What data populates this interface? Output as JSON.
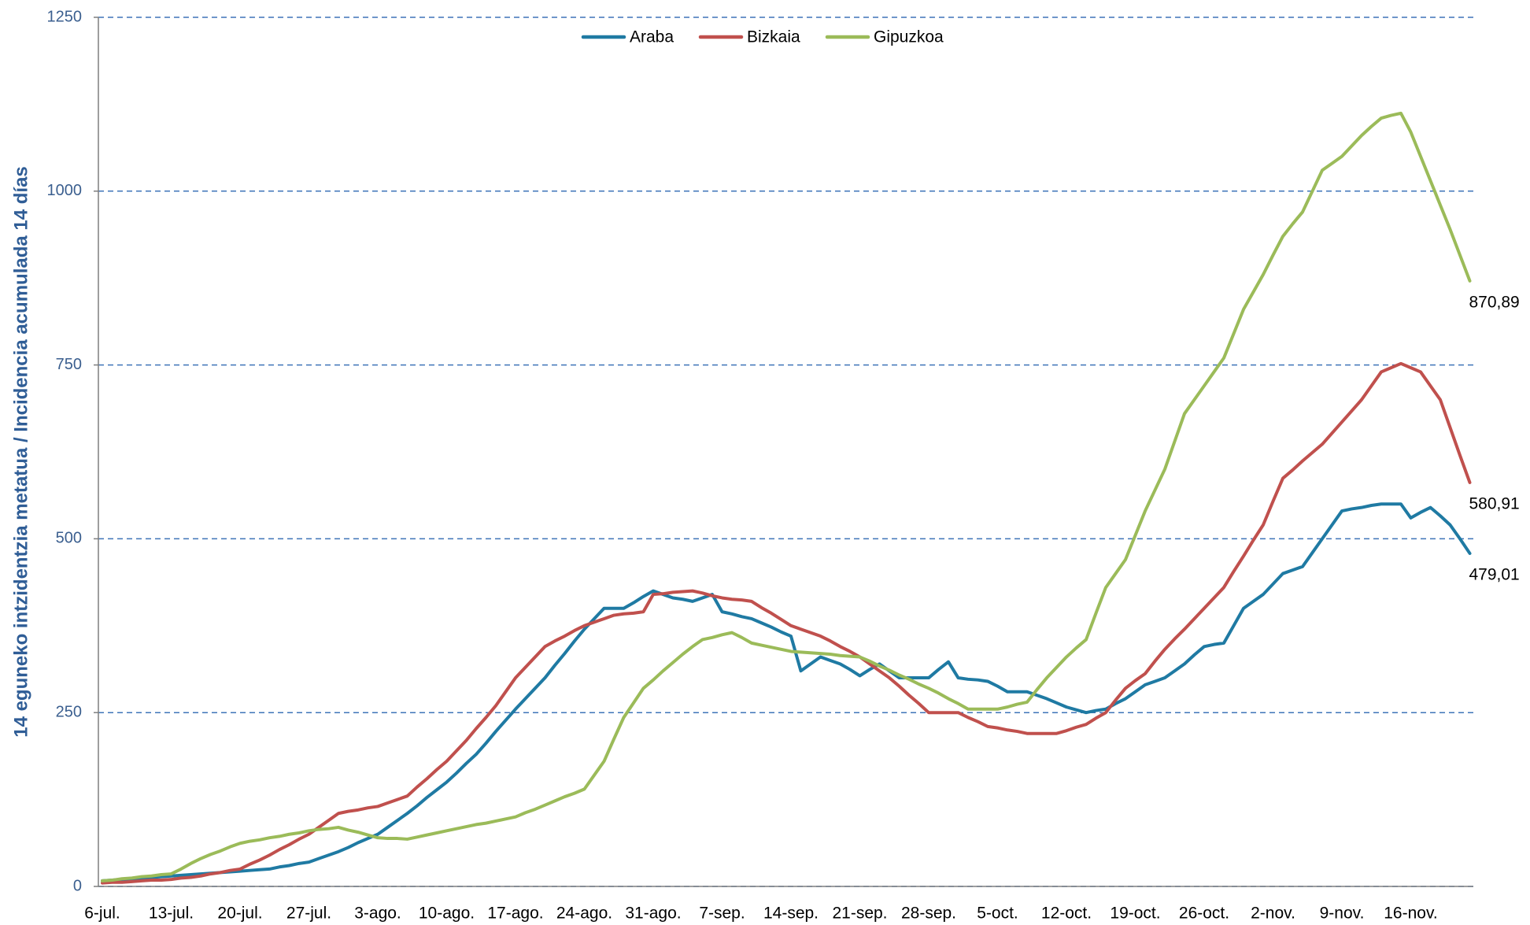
{
  "chart_data": {
    "type": "line",
    "y_axis_label": "14 eguneko intzidentzia metatua / Incidencia acumulada 14 días",
    "categories": [
      "6-jul.",
      null,
      null,
      null,
      null,
      null,
      null,
      "13-jul.",
      null,
      null,
      null,
      null,
      null,
      null,
      "20-jul.",
      null,
      null,
      null,
      null,
      null,
      null,
      "27-jul.",
      null,
      null,
      null,
      null,
      null,
      null,
      "3-ago.",
      null,
      null,
      null,
      null,
      null,
      null,
      "10-ago.",
      null,
      null,
      null,
      null,
      null,
      null,
      "17-ago.",
      null,
      null,
      null,
      null,
      null,
      null,
      "24-ago.",
      null,
      null,
      null,
      null,
      null,
      null,
      "31-ago.",
      null,
      null,
      null,
      null,
      null,
      null,
      "7-sep.",
      null,
      null,
      null,
      null,
      null,
      null,
      "14-sep.",
      null,
      null,
      null,
      null,
      null,
      null,
      "21-sep.",
      null,
      null,
      null,
      null,
      null,
      null,
      "28-sep.",
      null,
      null,
      null,
      null,
      null,
      null,
      "5-oct.",
      null,
      null,
      null,
      null,
      null,
      null,
      "12-oct.",
      null,
      null,
      null,
      null,
      null,
      null,
      "19-oct.",
      null,
      null,
      null,
      null,
      null,
      null,
      "26-oct.",
      null,
      null,
      null,
      null,
      null,
      null,
      "2-nov.",
      null,
      null,
      null,
      null,
      null,
      null,
      "9-nov.",
      null,
      null,
      null,
      null,
      null,
      null,
      "16-nov.",
      null,
      null,
      null,
      null,
      null,
      null
    ],
    "series": [
      {
        "name": "Araba",
        "color": "#1f7aa3",
        "values": [
          8,
          9,
          10,
          11,
          12,
          13,
          14,
          15,
          16,
          17,
          18,
          19,
          20,
          21,
          22,
          23,
          24,
          25,
          28,
          30,
          33,
          35,
          40,
          45,
          50,
          56,
          63,
          69,
          75,
          85,
          95,
          105,
          116,
          128,
          139,
          150,
          163,
          177,
          190,
          206,
          223,
          239,
          255,
          270,
          285,
          300,
          318,
          335,
          353,
          370,
          385,
          400,
          400,
          400,
          408,
          417,
          425,
          420,
          415,
          413,
          410,
          415,
          420,
          395,
          392,
          388,
          385,
          379,
          373,
          366,
          360,
          310,
          320,
          330,
          325,
          320,
          312,
          303,
          312,
          320,
          310,
          300,
          300,
          300,
          300,
          312,
          323,
          300,
          298,
          297,
          295,
          288,
          280,
          280,
          280,
          275,
          270,
          264,
          258,
          254,
          250,
          253,
          255,
          263,
          270,
          280,
          290,
          295,
          300,
          310,
          320,
          333,
          345,
          348,
          350,
          375,
          400,
          410,
          420,
          435,
          450,
          455,
          460,
          480,
          500,
          520,
          540,
          543,
          545,
          548,
          550,
          550,
          550,
          530,
          538,
          545,
          533,
          520,
          500,
          479.01
        ],
        "value_labels": [
          null,
          null,
          null,
          null,
          null,
          null,
          null,
          null,
          null,
          null,
          null,
          null,
          null,
          null,
          null,
          null,
          null,
          null,
          null,
          null,
          null,
          null,
          null,
          null,
          null,
          null,
          null,
          null,
          null,
          null,
          null,
          null,
          null,
          null,
          null,
          null,
          null,
          null,
          null,
          null,
          null,
          null,
          null,
          null,
          null,
          null,
          null,
          null,
          null,
          null,
          null,
          null,
          null,
          null,
          null,
          null,
          null,
          null,
          null,
          null,
          null,
          null,
          null,
          null,
          null,
          null,
          null,
          null,
          null,
          null,
          null,
          null,
          null,
          null,
          null,
          null,
          null,
          null,
          null,
          null,
          null,
          null,
          null,
          null,
          null,
          null,
          null,
          null,
          null,
          null,
          null,
          null,
          null,
          null,
          null,
          null,
          null,
          null,
          null,
          null,
          null,
          null,
          null,
          null,
          null,
          null,
          null,
          null,
          null,
          null,
          null,
          null,
          null,
          null,
          null,
          null,
          null,
          null,
          null,
          null,
          null,
          null,
          null,
          null,
          null,
          null,
          null,
          null,
          null,
          null,
          null,
          null,
          null,
          null,
          null,
          null,
          null,
          null,
          null,
          "479,01"
        ]
      },
      {
        "name": "Bizkaia",
        "color": "#c0504d",
        "values": [
          5,
          6,
          6,
          7,
          8,
          9,
          9,
          10,
          12,
          13,
          15,
          18,
          20,
          23,
          25,
          32,
          38,
          45,
          53,
          60,
          68,
          75,
          85,
          95,
          105,
          108,
          110,
          113,
          115,
          120,
          125,
          130,
          143,
          155,
          168,
          180,
          195,
          210,
          227,
          243,
          260,
          280,
          300,
          315,
          330,
          345,
          353,
          360,
          368,
          375,
          380,
          385,
          390,
          392,
          393,
          395,
          420,
          421,
          423,
          424,
          425,
          422,
          418,
          415,
          413,
          412,
          410,
          401,
          393,
          384,
          375,
          370,
          365,
          360,
          353,
          345,
          338,
          330,
          320,
          310,
          300,
          288,
          275,
          263,
          250,
          250,
          250,
          250,
          243,
          237,
          230,
          228,
          225,
          223,
          220,
          220,
          220,
          220,
          224,
          229,
          233,
          242,
          250,
          268,
          285,
          296,
          306,
          324,
          341,
          356,
          370,
          385,
          400,
          415,
          430,
          453,
          475,
          498,
          520,
          554,
          587,
          599,
          612,
          624,
          636,
          652,
          668,
          684,
          700,
          720,
          740,
          746,
          752,
          746,
          740,
          720,
          700,
          660,
          620,
          580.91
        ],
        "value_labels": [
          null,
          null,
          null,
          null,
          null,
          null,
          null,
          null,
          null,
          null,
          null,
          null,
          null,
          null,
          null,
          null,
          null,
          null,
          null,
          null,
          null,
          null,
          null,
          null,
          null,
          null,
          null,
          null,
          null,
          null,
          null,
          null,
          null,
          null,
          null,
          null,
          null,
          null,
          null,
          null,
          null,
          null,
          null,
          null,
          null,
          null,
          null,
          null,
          null,
          null,
          null,
          null,
          null,
          null,
          null,
          null,
          null,
          null,
          null,
          null,
          null,
          null,
          null,
          null,
          null,
          null,
          null,
          null,
          null,
          null,
          null,
          null,
          null,
          null,
          null,
          null,
          null,
          null,
          null,
          null,
          null,
          null,
          null,
          null,
          null,
          null,
          null,
          null,
          null,
          null,
          null,
          null,
          null,
          null,
          null,
          null,
          null,
          null,
          null,
          null,
          null,
          null,
          null,
          null,
          null,
          null,
          null,
          null,
          null,
          null,
          null,
          null,
          null,
          null,
          null,
          null,
          null,
          null,
          null,
          null,
          null,
          null,
          null,
          null,
          null,
          null,
          null,
          null,
          null,
          null,
          null,
          null,
          null,
          null,
          null,
          null,
          null,
          null,
          null,
          "580,91"
        ]
      },
      {
        "name": "Gipuzkoa",
        "color": "#9bbb59",
        "values": [
          8,
          9,
          11,
          12,
          14,
          15,
          17,
          18,
          25,
          33,
          40,
          46,
          51,
          57,
          62,
          65,
          67,
          70,
          72,
          75,
          77,
          80,
          82,
          83,
          85,
          81,
          78,
          74,
          70,
          69,
          69,
          68,
          71,
          74,
          77,
          80,
          83,
          86,
          89,
          91,
          94,
          97,
          100,
          106,
          111,
          117,
          123,
          129,
          134,
          140,
          160,
          180,
          212,
          243,
          264,
          285,
          297,
          310,
          322,
          334,
          345,
          355,
          358,
          362,
          365,
          358,
          350,
          347,
          344,
          341,
          338,
          337,
          336,
          335,
          334,
          332,
          331,
          330,
          324,
          317,
          311,
          304,
          298,
          291,
          285,
          278,
          270,
          263,
          255,
          255,
          255,
          255,
          258,
          262,
          265,
          283,
          300,
          315,
          330,
          343,
          355,
          393,
          430,
          450,
          470,
          505,
          540,
          570,
          600,
          640,
          680,
          700,
          720,
          740,
          760,
          795,
          830,
          855,
          880,
          908,
          935,
          953,
          970,
          1000,
          1030,
          1040,
          1050,
          1065,
          1080,
          1093,
          1105,
          1109,
          1112,
          1085,
          1050,
          1015,
          980,
          945,
          908,
          870.89
        ],
        "value_labels": [
          null,
          null,
          null,
          null,
          null,
          null,
          null,
          null,
          null,
          null,
          null,
          null,
          null,
          null,
          null,
          null,
          null,
          null,
          null,
          null,
          null,
          null,
          null,
          null,
          null,
          null,
          null,
          null,
          null,
          null,
          null,
          null,
          null,
          null,
          null,
          null,
          null,
          null,
          null,
          null,
          null,
          null,
          null,
          null,
          null,
          null,
          null,
          null,
          null,
          null,
          null,
          null,
          null,
          null,
          null,
          null,
          null,
          null,
          null,
          null,
          null,
          null,
          null,
          null,
          null,
          null,
          null,
          null,
          null,
          null,
          null,
          null,
          null,
          null,
          null,
          null,
          null,
          null,
          null,
          null,
          null,
          null,
          null,
          null,
          null,
          null,
          null,
          null,
          null,
          null,
          null,
          null,
          null,
          null,
          null,
          null,
          null,
          null,
          null,
          null,
          null,
          null,
          null,
          null,
          null,
          null,
          null,
          null,
          null,
          null,
          null,
          null,
          null,
          null,
          null,
          null,
          null,
          null,
          null,
          null,
          null,
          null,
          null,
          null,
          null,
          null,
          null,
          null,
          null,
          null,
          null,
          null,
          null,
          null,
          null,
          null,
          null,
          null,
          null,
          "870,89"
        ]
      }
    ],
    "ylim": [
      0,
      1250
    ],
    "yticks": [
      0,
      250,
      500,
      750,
      1000,
      1250
    ],
    "grid": true,
    "legend": "top"
  }
}
